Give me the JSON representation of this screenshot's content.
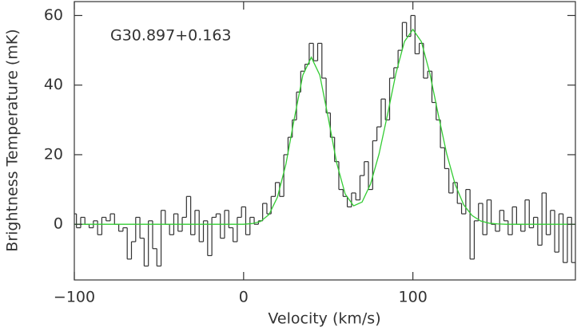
{
  "chart_data": {
    "type": "line",
    "xlabel": "Velocity (km/s)",
    "ylabel": "Brightness Temperature (mK)",
    "annotation": "G30.897+0.163",
    "xlim": [
      -100,
      196
    ],
    "ylim": [
      -16,
      64
    ],
    "xticks": [
      {
        "value": -100,
        "label": "−100"
      },
      0,
      100
    ],
    "yticks": [
      0,
      20,
      40,
      60
    ],
    "series": [
      {
        "color": "#333333",
        "drawstyle": "steps-mid",
        "x": [
          -100,
          -97.5,
          -95,
          -92.5,
          -90,
          -87.5,
          -85,
          -82.5,
          -80,
          -77.5,
          -75,
          -72.5,
          -70,
          -67.5,
          -65,
          -62.5,
          -60,
          -57.5,
          -55,
          -52.5,
          -50,
          -47.5,
          -45,
          -42.5,
          -40,
          -37.5,
          -35,
          -32.5,
          -30,
          -27.5,
          -25,
          -22.5,
          -20,
          -17.5,
          -15,
          -12.5,
          -10,
          -7.5,
          -5,
          -2.5,
          0,
          2.5,
          5,
          7.5,
          10,
          12.5,
          15,
          17.5,
          20,
          22.5,
          25,
          27.5,
          30,
          32.5,
          35,
          37.5,
          40,
          42.5,
          45,
          47.5,
          50,
          52.5,
          55,
          57.5,
          60,
          62.5,
          65,
          67.5,
          70,
          72.5,
          75,
          77.5,
          80,
          82.5,
          85,
          87.5,
          90,
          92.5,
          95,
          97.5,
          100,
          102.5,
          105,
          107.5,
          110,
          112.5,
          115,
          117.5,
          120,
          122.5,
          125,
          127.5,
          130,
          132.5,
          135,
          137.5,
          140,
          142.5,
          145,
          147.5,
          150,
          152.5,
          155,
          157.5,
          160,
          162.5,
          165,
          167.5,
          170,
          172.5,
          175,
          177.5,
          180,
          182.5,
          185,
          187.5,
          190,
          192.5,
          195
        ],
        "values": [
          3,
          -1,
          2,
          0,
          -1,
          1,
          -3,
          2,
          1,
          3,
          0,
          -2,
          -1,
          -10,
          -5,
          2,
          -4,
          -12,
          1,
          -7,
          -12,
          4,
          0,
          -3,
          3,
          -2,
          2,
          8,
          -3,
          4,
          -5,
          1,
          -9,
          2,
          3,
          -4,
          4,
          -1,
          -5,
          2,
          5,
          -3,
          2,
          0,
          1,
          6,
          3,
          8,
          12,
          8,
          20,
          25,
          30,
          38,
          44,
          46,
          52,
          47,
          52,
          42,
          32,
          25,
          18,
          10,
          8,
          5,
          9,
          7,
          14,
          18,
          10,
          24,
          28,
          36,
          30,
          42,
          45,
          50,
          58,
          54,
          60,
          49,
          52,
          42,
          44,
          35,
          30,
          22,
          16,
          9,
          12,
          6,
          3,
          10,
          -10,
          1,
          6,
          -3,
          7,
          0,
          -2,
          4,
          1,
          -3,
          5,
          0,
          -2,
          7,
          -1,
          2,
          -6,
          9,
          -3,
          4,
          -8,
          3,
          -11,
          2,
          -11
        ]
      },
      {
        "color": "#33cc33",
        "x": [
          -100,
          -50,
          0,
          5,
          10,
          15,
          20,
          25,
          30,
          35,
          40,
          45,
          50,
          55,
          60,
          65,
          70,
          75,
          80,
          85,
          90,
          95,
          100,
          105,
          110,
          115,
          120,
          125,
          130,
          135,
          140,
          145,
          150,
          155,
          196
        ],
        "values": [
          0,
          0,
          0,
          0.2,
          0.8,
          2.8,
          7.8,
          17.3,
          30.5,
          42.9,
          48,
          42.9,
          30.6,
          17.6,
          8.7,
          5.3,
          6.4,
          11.6,
          20.2,
          31.5,
          43.4,
          52.5,
          56,
          52.5,
          43.4,
          31.5,
          20.2,
          11.4,
          5.6,
          2.5,
          0.95,
          0.32,
          0.1,
          0,
          0
        ]
      }
    ]
  }
}
